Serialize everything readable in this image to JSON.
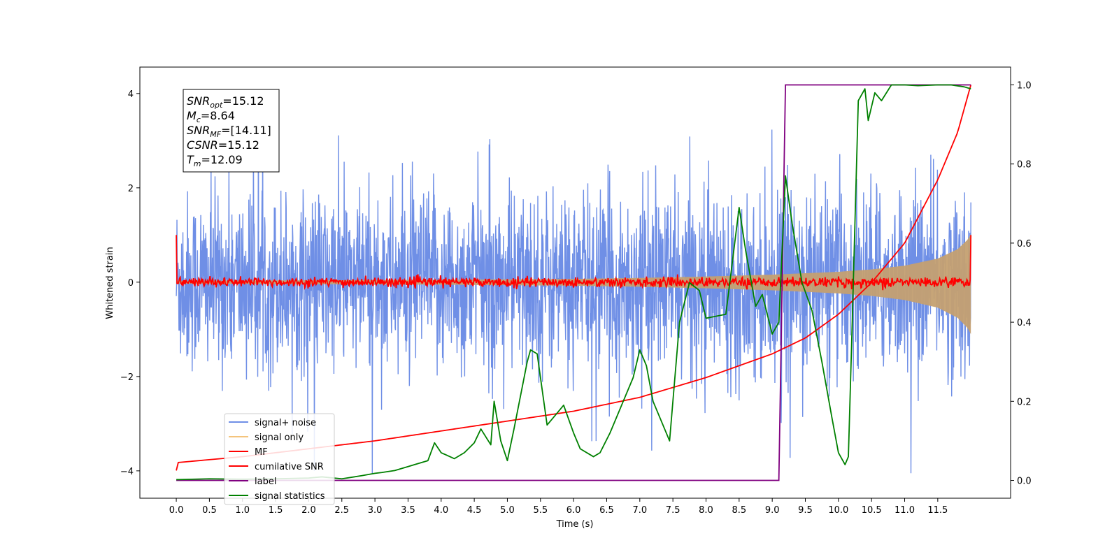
{
  "chart_data": {
    "type": "line",
    "xlabel": "Time (s)",
    "ylabel": "Whitened strain",
    "xlim": [
      -0.55,
      12.6
    ],
    "ylim": [
      -4.58,
      4.56
    ],
    "y2lim": [
      -0.045,
      1.045
    ],
    "x_ticks": [
      0.0,
      0.5,
      1.0,
      1.5,
      2.0,
      2.5,
      3.0,
      3.5,
      4.0,
      4.5,
      5.0,
      5.5,
      6.0,
      6.5,
      7.0,
      7.5,
      8.0,
      8.5,
      9.0,
      9.5,
      10.0,
      10.5,
      11.0,
      11.5
    ],
    "x_tick_labels": [
      "0.0",
      "0.5",
      "1.0",
      "1.5",
      "2.0",
      "2.5",
      "3.0",
      "3.5",
      "4.0",
      "4.5",
      "5.0",
      "5.5",
      "6.0",
      "6.5",
      "7.0",
      "7.5",
      "8.0",
      "8.5",
      "9.0",
      "9.5",
      "10.0",
      "10.5",
      "11.0",
      "11.5"
    ],
    "y_ticks": [
      -4,
      -2,
      0,
      2,
      4
    ],
    "y_tick_labels": [
      "−4",
      "−2",
      "0",
      "2",
      "4"
    ],
    "y2_ticks": [
      0.0,
      0.2,
      0.4,
      0.6,
      0.8,
      1.0
    ],
    "y2_tick_labels": [
      "0.0",
      "0.2",
      "0.4",
      "0.6",
      "0.8",
      "1.0"
    ],
    "legend_position": "lower-left",
    "series": [
      {
        "name": "signal+ noise",
        "color": "#6f8fe6",
        "axis": "left",
        "kind": "noise band",
        "x_range": [
          0.0,
          12.0
        ],
        "amplitude_typical": 1.6,
        "amplitude_max": 4.05
      },
      {
        "name": "signal only",
        "color": "#e8b86a",
        "axis": "left",
        "kind": "chirp envelope",
        "x": [
          0.0,
          2.0,
          4.0,
          6.0,
          7.0,
          8.0,
          9.0,
          10.0,
          10.5,
          11.0,
          11.5,
          11.8,
          11.95,
          12.0
        ],
        "envelope": [
          0.03,
          0.04,
          0.05,
          0.07,
          0.09,
          0.12,
          0.16,
          0.22,
          0.27,
          0.35,
          0.5,
          0.7,
          0.9,
          1.02
        ]
      },
      {
        "name": "MF",
        "color": "#ff0000",
        "axis": "left",
        "kind": "noisy line around zero",
        "x_range": [
          0.0,
          12.0
        ],
        "start_value": 1.0,
        "end_value": 1.0,
        "amplitude_typical": 0.12
      },
      {
        "name": "cumilative SNR",
        "color": "#ff0000",
        "axis": "right",
        "x": [
          0.0,
          0.01,
          1.0,
          2.0,
          3.0,
          4.0,
          5.0,
          6.0,
          7.0,
          8.0,
          9.0,
          9.5,
          10.0,
          10.5,
          11.0,
          11.5,
          11.8,
          12.0
        ],
        "y": [
          0.025,
          0.045,
          0.06,
          0.08,
          0.1,
          0.125,
          0.15,
          0.175,
          0.21,
          0.26,
          0.32,
          0.36,
          0.42,
          0.5,
          0.6,
          0.76,
          0.88,
          1.0
        ]
      },
      {
        "name": "label",
        "color": "#800080",
        "axis": "right",
        "x": [
          0.0,
          9.1,
          9.2,
          12.0
        ],
        "y": [
          0.0,
          0.0,
          1.0,
          1.0
        ]
      },
      {
        "name": "signal statistics",
        "color": "#008000",
        "axis": "right",
        "x": [
          0.0,
          0.5,
          1.0,
          1.5,
          2.0,
          2.2,
          2.5,
          2.8,
          3.0,
          3.1,
          3.3,
          3.5,
          3.6,
          3.8,
          3.9,
          4.0,
          4.2,
          4.35,
          4.5,
          4.6,
          4.75,
          4.8,
          4.9,
          5.0,
          5.1,
          5.3,
          5.35,
          5.45,
          5.55,
          5.6,
          5.75,
          5.85,
          6.0,
          6.1,
          6.3,
          6.4,
          6.55,
          6.75,
          6.9,
          7.0,
          7.1,
          7.2,
          7.3,
          7.45,
          7.6,
          7.75,
          7.9,
          8.0,
          8.3,
          8.5,
          8.6,
          8.75,
          8.85,
          9.0,
          9.1,
          9.2,
          9.3,
          9.45,
          9.6,
          9.75,
          9.9,
          10.0,
          10.1,
          10.15,
          10.2,
          10.3,
          10.4,
          10.45,
          10.55,
          10.65,
          10.8,
          11.0,
          11.2,
          11.5,
          11.7,
          11.9,
          12.0
        ],
        "y": [
          0.002,
          0.004,
          0.003,
          0.004,
          0.006,
          0.009,
          0.004,
          0.012,
          0.018,
          0.02,
          0.025,
          0.035,
          0.04,
          0.05,
          0.095,
          0.07,
          0.055,
          0.07,
          0.095,
          0.13,
          0.09,
          0.2,
          0.1,
          0.05,
          0.13,
          0.3,
          0.33,
          0.32,
          0.2,
          0.14,
          0.17,
          0.19,
          0.12,
          0.08,
          0.06,
          0.07,
          0.12,
          0.2,
          0.26,
          0.33,
          0.29,
          0.2,
          0.16,
          0.1,
          0.4,
          0.5,
          0.48,
          0.41,
          0.42,
          0.69,
          0.58,
          0.44,
          0.47,
          0.37,
          0.4,
          0.77,
          0.65,
          0.5,
          0.43,
          0.3,
          0.16,
          0.07,
          0.04,
          0.06,
          0.35,
          0.96,
          0.99,
          0.91,
          0.98,
          0.96,
          1.0,
          1.0,
          0.998,
          1.0,
          1.0,
          0.995,
          0.99
        ]
      }
    ],
    "annotation": {
      "snr_opt": "15.12",
      "mc": "8.64",
      "snr_mf": "[14.11]",
      "csnr": "15.12",
      "tm": "12.09"
    }
  },
  "legend": {
    "items": [
      {
        "label": "signal+ noise",
        "color": "#6f8fe6"
      },
      {
        "label": "signal only",
        "color": "#f4c47c"
      },
      {
        "label": "MF",
        "color": "#ff0000"
      },
      {
        "label": "cumilative SNR",
        "color": "#ff0000"
      },
      {
        "label": "label",
        "color": "#800080"
      },
      {
        "label": "signal statistics",
        "color": "#008000"
      }
    ]
  },
  "info_box": {
    "line1_main": "SNR",
    "line1_sub": "opt",
    "line1_value": "=15.12",
    "line2_main": "M",
    "line2_sub": "c",
    "line2_value": "=8.64",
    "line3_main": "SNR",
    "line3_sub": "MF",
    "line3_value": "=[14.11]",
    "line4_main": "CSNR",
    "line4_value": "=15.12",
    "line5_main": "T",
    "line5_sub": "m",
    "line5_value": "=12.09"
  }
}
